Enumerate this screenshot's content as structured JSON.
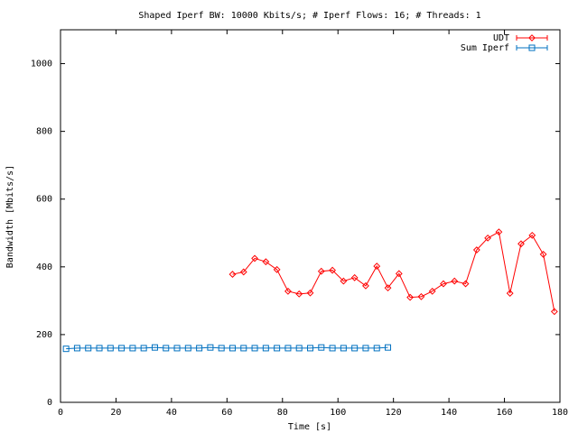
{
  "chart_data": {
    "type": "line",
    "title": "Shaped Iperf BW: 10000 Kbits/s; # Iperf Flows: 16; # Threads: 1",
    "xlabel": "Time [s]",
    "ylabel": "Bandwidth [Mbits/s]",
    "xlim": [
      0,
      180
    ],
    "ylim": [
      0,
      1100
    ],
    "xticks": [
      0,
      20,
      40,
      60,
      80,
      100,
      120,
      140,
      160,
      180
    ],
    "yticks": [
      0,
      200,
      400,
      600,
      800,
      1000
    ],
    "grid": false,
    "legend_position": "top-right",
    "series": [
      {
        "name": "UDT",
        "color": "#ff0000",
        "marker": "diamond",
        "x": [
          62,
          66,
          70,
          74,
          78,
          82,
          86,
          90,
          94,
          98,
          102,
          106,
          110,
          114,
          118,
          122,
          126,
          130,
          134,
          138,
          142,
          146,
          150,
          154,
          158,
          162,
          166,
          170,
          174,
          178
        ],
        "y": [
          378,
          385,
          425,
          415,
          392,
          328,
          320,
          323,
          387,
          390,
          358,
          368,
          344,
          402,
          338,
          380,
          310,
          312,
          328,
          350,
          358,
          350,
          450,
          485,
          503,
          322,
          468,
          493,
          437,
          268
        ]
      },
      {
        "name": "Sum Iperf",
        "color": "#0070c0",
        "marker": "square",
        "x": [
          2,
          6,
          10,
          14,
          18,
          22,
          26,
          30,
          34,
          38,
          42,
          46,
          50,
          54,
          58,
          62,
          66,
          70,
          74,
          78,
          82,
          86,
          90,
          94,
          98,
          102,
          106,
          110,
          114,
          118
        ],
        "y": [
          158,
          160,
          160,
          160,
          160,
          160,
          160,
          160,
          162,
          160,
          160,
          160,
          160,
          162,
          160,
          160,
          160,
          160,
          160,
          160,
          160,
          160,
          160,
          162,
          160,
          160,
          160,
          160,
          160,
          162
        ]
      }
    ]
  }
}
